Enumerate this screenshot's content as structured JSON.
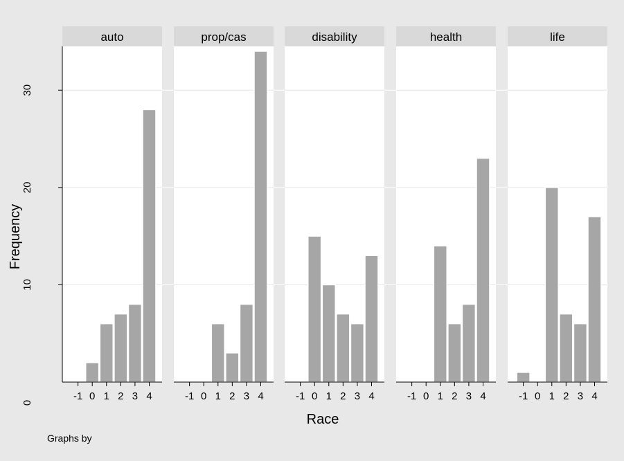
{
  "chart_data": {
    "type": "bar",
    "xlabel": "Race",
    "ylabel": "Frequency",
    "note": "Graphs by",
    "x_ticks": [
      -1,
      0,
      1,
      2,
      3,
      4
    ],
    "y_ticks": [
      0,
      10,
      20,
      30
    ],
    "ylim": [
      0,
      34.5
    ],
    "xlim": [
      -2.1,
      4.9
    ],
    "grid": true,
    "colors": {
      "bar": "#a6a6a6",
      "bar_edge": "#ffffff",
      "strip": "#d9d9d9",
      "background": "#e8e8e8",
      "plot": "#ffffff",
      "grid": "#e6e6e6"
    },
    "panels": [
      {
        "title": "auto",
        "x": [
          0,
          1,
          2,
          3,
          4
        ],
        "values": [
          2,
          6,
          7,
          8,
          28
        ]
      },
      {
        "title": "prop/cas",
        "x": [
          1,
          2,
          3,
          4
        ],
        "values": [
          6,
          3,
          8,
          34
        ]
      },
      {
        "title": "disability",
        "x": [
          0,
          1,
          2,
          3,
          4
        ],
        "values": [
          15,
          10,
          7,
          6,
          13
        ]
      },
      {
        "title": "health",
        "x": [
          1,
          2,
          3,
          4
        ],
        "values": [
          14,
          6,
          8,
          23
        ]
      },
      {
        "title": "life",
        "x": [
          -1,
          1,
          2,
          3,
          4
        ],
        "values": [
          1,
          20,
          7,
          6,
          17
        ]
      }
    ]
  }
}
